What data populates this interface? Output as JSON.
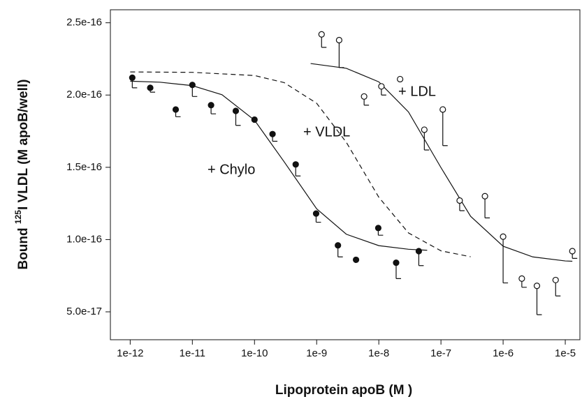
{
  "chart_data": {
    "type": "scatter",
    "xlabel": "Lipoprotein apoB (M )",
    "ylabel_parts": [
      "Bound ",
      "125",
      "I VLDL (M apoB/well)"
    ],
    "xscale": "log",
    "xlim": [
      4.8e-13,
      1.72e-05
    ],
    "ylim": [
      3.07e-17,
      2.59e-16
    ],
    "xticks": [
      1e-12,
      1e-11,
      1e-10,
      1e-09,
      1e-08,
      1e-07,
      {
        "value": 1e-06,
        "label": "1e-6"
      },
      {
        "value": 1e-05,
        "label": "1e-5"
      }
    ],
    "yticks": [
      {
        "value": 5e-17,
        "label": "5.0e-17"
      },
      {
        "value": 1e-16,
        "label": "1.0e-16"
      },
      1.5e-16,
      {
        "value": 2e-16,
        "label": "2.0e-16"
      },
      2.5e-16
    ],
    "grid": false,
    "color": "#111111",
    "series": [
      {
        "name": "+ Chylo",
        "marker": "filled",
        "dash": false,
        "x": [
          1.08e-12,
          2.1e-12,
          5.4e-12,
          1e-11,
          2e-11,
          5e-11,
          1e-10,
          1.95e-10,
          4.6e-10,
          9.8e-10,
          2.2e-09,
          4.3e-09,
          9.8e-09,
          1.9e-08,
          4.4e-08
        ],
        "values": [
          2.12e-16,
          2.05e-16,
          1.9e-16,
          2.07e-16,
          1.93e-16,
          1.89e-16,
          1.83e-16,
          1.73e-16,
          1.52e-16,
          1.18e-16,
          9.6e-17,
          8.6e-17,
          1.08e-16,
          8.4e-17,
          9.2e-17
        ],
        "errors": [
          7e-18,
          3e-18,
          5e-18,
          8e-18,
          6e-18,
          1e-17,
          null,
          5e-18,
          8e-18,
          6e-18,
          8e-18,
          null,
          5e-18,
          1.1e-17,
          1e-17
        ],
        "curve_x": [
          1e-12,
          3e-12,
          1e-11,
          3e-11,
          1e-10,
          3e-10,
          1e-09,
          3e-09,
          1e-08,
          3e-08,
          6e-08
        ],
        "curve_values": [
          2.096e-16,
          2.089e-16,
          2.065e-16,
          2.002e-16,
          1.826e-16,
          1.538e-16,
          1.213e-16,
          1.037e-16,
          9.58e-17,
          9.33e-17,
          9.26e-17
        ]
      },
      {
        "name": "+ VLDL",
        "marker": "none",
        "dash": true,
        "curve_x": [
          1e-12,
          1e-11,
          1e-10,
          3e-10,
          1e-09,
          3e-09,
          1e-08,
          3e-08,
          1e-07,
          3e-07
        ],
        "curve_values": [
          2.16e-16,
          2.157e-16,
          2.135e-16,
          2.086e-16,
          1.943e-16,
          1.673e-16,
          1.293e-16,
          1.046e-16,
          9.22e-17,
          8.81e-17
        ]
      },
      {
        "name": "+ LDL",
        "marker": "open",
        "dash": false,
        "x": [
          1.2e-09,
          2.3e-09,
          5.8e-09,
          1.1e-08,
          2.2e-08,
          5.4e-08,
          1.07e-07,
          2e-07,
          5.1e-07,
          1e-06,
          2e-06,
          3.5e-06,
          7e-06,
          1.3e-05
        ],
        "values": [
          2.42e-16,
          2.38e-16,
          1.99e-16,
          2.06e-16,
          2.11e-16,
          1.76e-16,
          1.9e-16,
          1.27e-16,
          1.3e-16,
          1.02e-16,
          7.3e-17,
          6.8e-17,
          7.2e-17,
          9.2e-17
        ],
        "errors": [
          9e-18,
          1.9e-17,
          6e-18,
          6e-18,
          null,
          1.4e-17,
          2.5e-17,
          7e-18,
          1.5e-17,
          3.2e-17,
          6e-18,
          2e-17,
          1.1e-17,
          5e-18
        ],
        "curve_x": [
          8e-10,
          3e-09,
          1e-08,
          3e-08,
          1e-07,
          3e-07,
          1e-06,
          3e-06,
          1e-05,
          1.3e-05
        ],
        "curve_values": [
          2.218e-16,
          2.185e-16,
          2.091e-16,
          1.883e-16,
          1.498e-16,
          1.161e-16,
          9.54e-17,
          8.8e-17,
          8.52e-17,
          8.5e-17
        ]
      }
    ]
  }
}
